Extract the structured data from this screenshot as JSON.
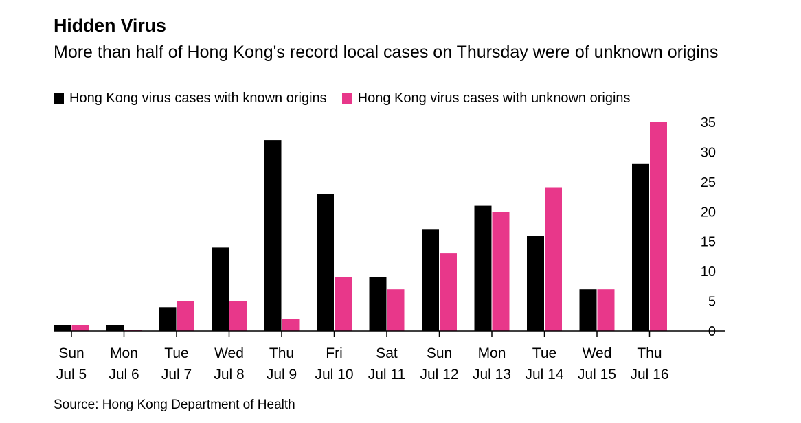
{
  "header": {
    "title": "Hidden Virus",
    "subtitle": "More than half of Hong Kong's record local cases on Thursday were of unknown origins"
  },
  "source": "Source: Hong Kong Department of Health",
  "colors": {
    "known": "#000000",
    "unknown": "#e8378a",
    "axis": "#000000"
  },
  "chart_data": {
    "type": "bar",
    "title": "Hidden Virus",
    "subtitle": "More than half of Hong Kong's record local cases on Thursday were of unknown origins",
    "xlabel": "",
    "ylabel": "",
    "ylim": [
      0,
      35
    ],
    "yticks": [
      0,
      5,
      10,
      15,
      20,
      25,
      30,
      35
    ],
    "y_axis_side": "right",
    "grid": false,
    "legend_position": "top-left",
    "categories": [
      [
        "Sun",
        "Jul 5"
      ],
      [
        "Mon",
        "Jul 6"
      ],
      [
        "Tue",
        "Jul 7"
      ],
      [
        "Wed",
        "Jul 8"
      ],
      [
        "Thu",
        "Jul 9"
      ],
      [
        "Fri",
        "Jul 10"
      ],
      [
        "Sat",
        "Jul 11"
      ],
      [
        "Sun",
        "Jul 12"
      ],
      [
        "Mon",
        "Jul 13"
      ],
      [
        "Tue",
        "Jul 14"
      ],
      [
        "Wed",
        "Jul 15"
      ],
      [
        "Thu",
        "Jul 16"
      ]
    ],
    "series": [
      {
        "name": "Hong Kong virus cases with known origins",
        "color": "#000000",
        "values": [
          1,
          1,
          4,
          14,
          32,
          23,
          9,
          17,
          21,
          16,
          7,
          28
        ]
      },
      {
        "name": "Hong Kong virus cases with unknown origins",
        "color": "#e8378a",
        "values": [
          1,
          0,
          5,
          5,
          2,
          9,
          7,
          13,
          20,
          24,
          7,
          35
        ]
      }
    ]
  }
}
